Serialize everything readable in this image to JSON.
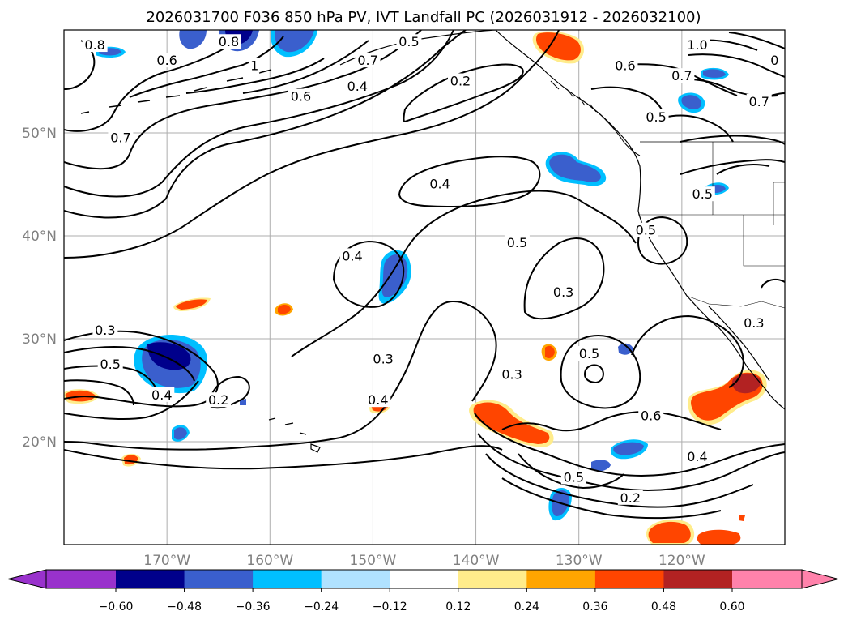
{
  "title": "2026031700 F036 850 hPa PV, IVT Landfall PC (2026031912 - 2026032100)",
  "map": {
    "lon_range": [
      -180,
      -110
    ],
    "lat_range": [
      10,
      60
    ],
    "lon_ticks": [
      {
        "lon": -170,
        "label": "170°W"
      },
      {
        "lon": -160,
        "label": "160°W"
      },
      {
        "lon": -150,
        "label": "150°W"
      },
      {
        "lon": -140,
        "label": "140°W"
      },
      {
        "lon": -130,
        "label": "130°W"
      },
      {
        "lon": -120,
        "label": "120°W"
      }
    ],
    "lat_ticks": [
      {
        "lat": 20,
        "label": "20°N"
      },
      {
        "lat": 30,
        "label": "30°N"
      },
      {
        "lat": 40,
        "label": "40°N"
      },
      {
        "lat": 50,
        "label": "50°N"
      }
    ]
  },
  "contour_labels": [
    {
      "text": "0.8",
      "lon": -177.0,
      "lat": 58.5
    },
    {
      "text": "0.6",
      "lon": -170.0,
      "lat": 57.0
    },
    {
      "text": "0.8",
      "lon": -164.0,
      "lat": 58.8
    },
    {
      "text": "1",
      "lon": -161.5,
      "lat": 56.5
    },
    {
      "text": "0.7",
      "lon": -150.5,
      "lat": 57.0
    },
    {
      "text": "0.5",
      "lon": -146.5,
      "lat": 58.8
    },
    {
      "text": "0.4",
      "lon": -151.5,
      "lat": 54.5
    },
    {
      "text": "0.6",
      "lon": -157.0,
      "lat": 53.5
    },
    {
      "text": "0.2",
      "lon": -141.5,
      "lat": 55.0
    },
    {
      "text": "0.7",
      "lon": -174.5,
      "lat": 49.5
    },
    {
      "text": "0.4",
      "lon": -143.5,
      "lat": 45.0
    },
    {
      "text": "0.5",
      "lon": -136.0,
      "lat": 39.3
    },
    {
      "text": "0.4",
      "lon": -152.0,
      "lat": 38.0
    },
    {
      "text": "0.3",
      "lon": -131.5,
      "lat": 34.5
    },
    {
      "text": "0.3",
      "lon": -176.0,
      "lat": 30.8
    },
    {
      "text": "0.5",
      "lon": -175.5,
      "lat": 27.5
    },
    {
      "text": "0.4",
      "lon": -170.5,
      "lat": 24.5
    },
    {
      "text": "0.2",
      "lon": -165.0,
      "lat": 24.0
    },
    {
      "text": "0.3",
      "lon": -149.0,
      "lat": 28.0
    },
    {
      "text": "0.4",
      "lon": -149.5,
      "lat": 24.0
    },
    {
      "text": "0.3",
      "lon": -136.5,
      "lat": 26.5
    },
    {
      "text": "0.5",
      "lon": -129.0,
      "lat": 28.5
    },
    {
      "text": "0.6",
      "lon": -123.0,
      "lat": 22.5
    },
    {
      "text": "0.5",
      "lon": -130.5,
      "lat": 16.5
    },
    {
      "text": "0.2",
      "lon": -125.0,
      "lat": 14.5
    },
    {
      "text": "0.4",
      "lon": -118.5,
      "lat": 18.5
    },
    {
      "text": "1.0",
      "lon": -118.5,
      "lat": 58.5
    },
    {
      "text": "0",
      "lon": -111.0,
      "lat": 57.0
    },
    {
      "text": "0.6",
      "lon": -125.5,
      "lat": 56.5
    },
    {
      "text": "0.7",
      "lon": -120.0,
      "lat": 55.5
    },
    {
      "text": "0.7",
      "lon": -112.5,
      "lat": 53.0
    },
    {
      "text": "0.5",
      "lon": -122.5,
      "lat": 51.5
    },
    {
      "text": "0.5",
      "lon": -118.0,
      "lat": 44.0
    },
    {
      "text": "0.5",
      "lon": -123.5,
      "lat": 40.5
    },
    {
      "text": "0.3",
      "lon": -113.0,
      "lat": 31.5
    }
  ],
  "colorbar": {
    "ticks": [
      "−0.60",
      "−0.48",
      "−0.36",
      "−0.24",
      "−0.12",
      "0.12",
      "0.24",
      "0.36",
      "0.48",
      "0.60"
    ],
    "colors": [
      "#9932cc",
      "#00008b",
      "#3a5fcd",
      "#00bfff",
      "#b0e2ff",
      "#ffffff",
      "#ffec8b",
      "#ffa500",
      "#ff4500",
      "#b22222",
      "#ff82ab"
    ]
  }
}
